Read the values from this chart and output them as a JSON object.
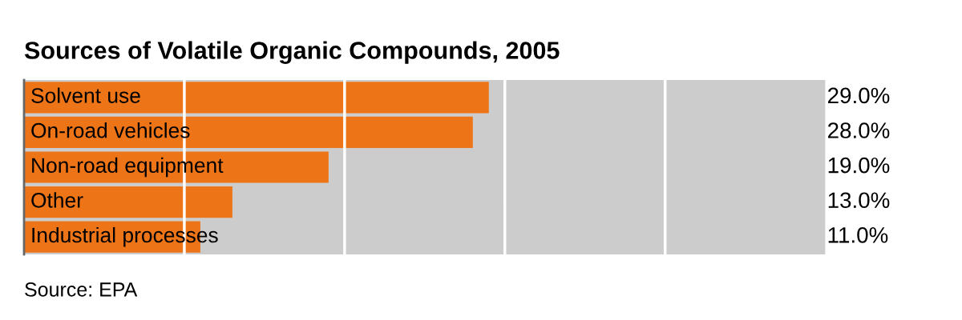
{
  "chart_data": {
    "type": "bar",
    "orientation": "horizontal",
    "title": "Sources of Volatile Organic Compounds, 2005",
    "categories": [
      "Solvent use",
      "On-road vehicles",
      "Non-road equipment",
      "Other",
      "Industrial processes"
    ],
    "values": [
      29.0,
      28.0,
      19.0,
      13.0,
      11.0
    ],
    "color": "#ed7417",
    "value_labels": [
      "29.0%",
      "28.0%",
      "19.0%",
      "13.0%",
      "11.0%"
    ],
    "xlim": [
      0,
      50
    ],
    "xticks": [
      {
        "value": 10,
        "label": null
      },
      {
        "value": 20,
        "label": null
      },
      {
        "value": 30,
        "label": null
      },
      {
        "value": 40,
        "label": null
      }
    ],
    "grid": "x",
    "bands": [
      {
        "axis": "x",
        "from": 0,
        "to": 50,
        "color": "#cccccc"
      }
    ],
    "annotations": [
      "Source: EPA"
    ]
  }
}
